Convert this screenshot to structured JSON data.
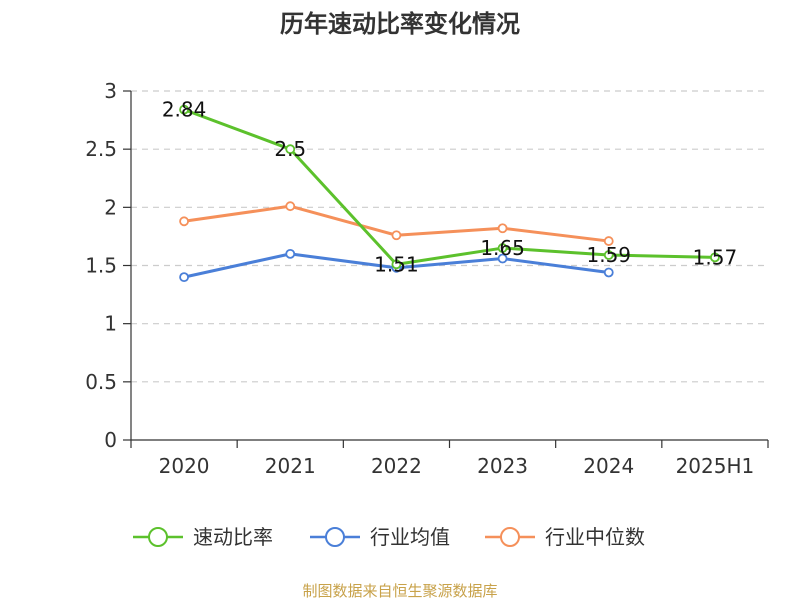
{
  "chart_data": {
    "type": "line",
    "title": "历年速动比率变化情况",
    "categories": [
      "2020",
      "2021",
      "2022",
      "2023",
      "2024",
      "2025H1"
    ],
    "y_ticks": [
      "0",
      "0.5",
      "1",
      "1.5",
      "2",
      "2.5",
      "3"
    ],
    "ylim": [
      0,
      3
    ],
    "grid": true,
    "legend_position": "bottom",
    "series": [
      {
        "name": "速动比率",
        "color": "#5cc12c",
        "values": [
          2.84,
          2.5,
          1.51,
          1.65,
          1.59,
          1.57
        ],
        "labels": [
          "2.84",
          "2.5",
          "1.51",
          "1.65",
          "1.59",
          "1.57"
        ]
      },
      {
        "name": "行业均值",
        "color": "#4a7fd8",
        "values": [
          1.4,
          1.6,
          1.48,
          1.56,
          1.44,
          null
        ]
      },
      {
        "name": "行业中位数",
        "color": "#f5905a",
        "values": [
          1.88,
          2.01,
          1.76,
          1.82,
          1.71,
          null
        ]
      }
    ],
    "source": "制图数据来自恒生聚源数据库"
  }
}
